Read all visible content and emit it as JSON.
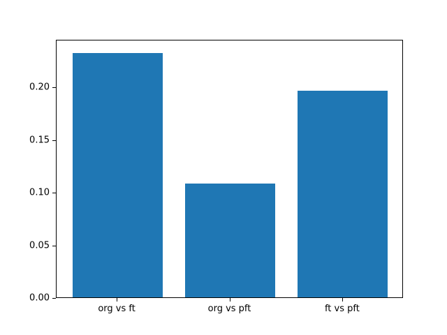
{
  "chart_data": {
    "type": "bar",
    "categories": [
      "org vs ft",
      "org vs pft",
      "ft vs pft"
    ],
    "values": [
      0.232,
      0.108,
      0.196
    ],
    "title": "",
    "xlabel": "",
    "ylabel": "",
    "ylim": [
      0,
      0.245
    ],
    "xlim": [
      -0.54,
      2.54
    ],
    "yticks": [
      0,
      0.05,
      0.1,
      0.15,
      0.2
    ],
    "ytick_format_decimals": 2,
    "bar_width": 0.8,
    "grid": false,
    "legend": null,
    "colors": {
      "bar": "#1f77b4",
      "background": "#ffffff",
      "axis": "#000000"
    }
  }
}
